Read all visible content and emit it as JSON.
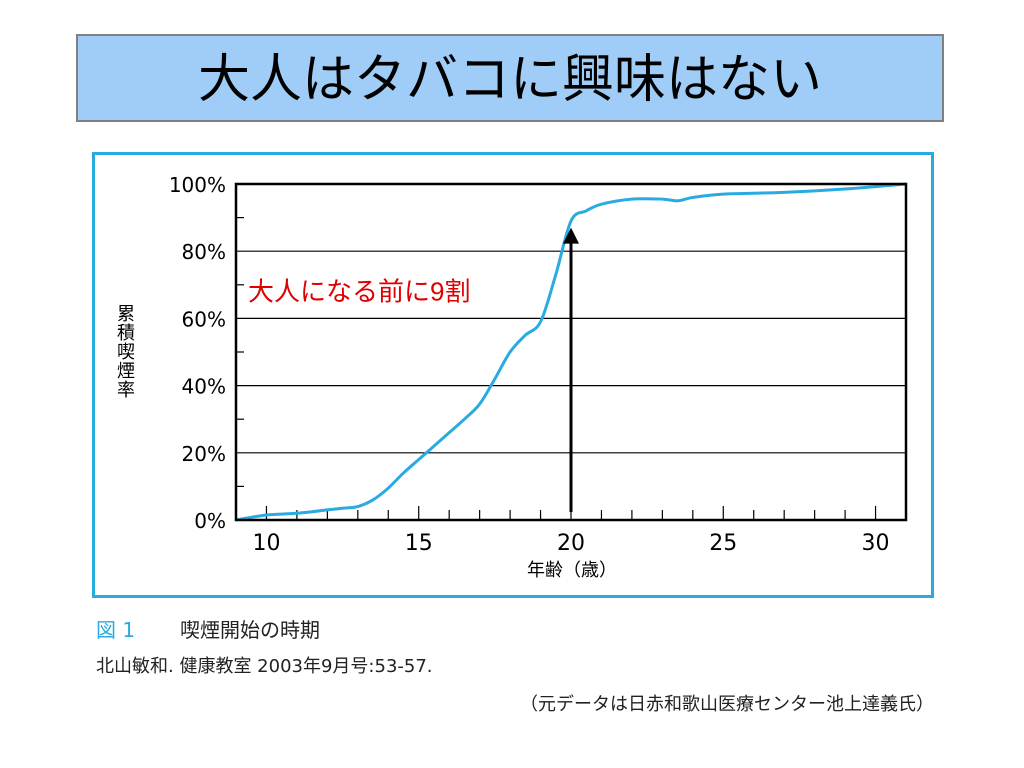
{
  "slide": {
    "title": "大人はタバコに興味はない"
  },
  "caption": {
    "fig_label": "図 1",
    "fig_title": "喫煙開始の時期",
    "citation": "北山敏和. 健康教室 2003年9月号:53-57.",
    "source_note": "（元データは日赤和歌山医療センター池上達義氏）"
  },
  "colors": {
    "title_bg": "#9fcdf7",
    "frame": "#29abe2",
    "curve": "#29abe2",
    "annotation": "#e00000"
  },
  "chart_data": {
    "type": "line",
    "xlabel": "年齢（歳）",
    "ylabel": "累積喫煙率",
    "xlim": [
      9,
      31
    ],
    "ylim": [
      0,
      100
    ],
    "xticks": [
      10,
      15,
      20,
      25,
      30
    ],
    "yticks": [
      0,
      20,
      40,
      60,
      80,
      100
    ],
    "xtick_labels": [
      "10",
      "15",
      "20",
      "25",
      "30"
    ],
    "ytick_labels": [
      "0%",
      "20%",
      "40%",
      "60%",
      "80%",
      "100%"
    ],
    "grid": "horizontal",
    "series": [
      {
        "x": [
          9,
          10,
          11,
          12,
          12.5,
          13,
          13.5,
          14,
          14.5,
          15,
          15.5,
          16,
          16.5,
          17,
          17.5,
          18,
          18.5,
          19,
          19.5,
          20,
          20.5,
          21,
          22,
          23,
          23.5,
          24,
          25,
          27,
          29,
          31
        ],
        "y": [
          0,
          1.5,
          2,
          3,
          3.5,
          4,
          6,
          9.5,
          14,
          18,
          22,
          26,
          30,
          34.5,
          42,
          50,
          55,
          59,
          73,
          89,
          92,
          94,
          95.5,
          95.5,
          95,
          96,
          97,
          97.5,
          98.5,
          100
        ]
      }
    ],
    "annotations": [
      {
        "text": "大人になる前に9割",
        "x": 20,
        "y": 87
      }
    ]
  }
}
